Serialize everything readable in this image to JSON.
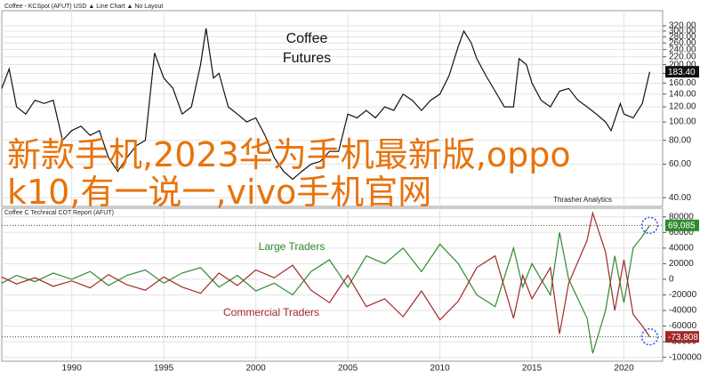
{
  "chart_data": [
    {
      "type": "line",
      "subtitle": "Coffee - KCSpot (AFUT) USD ▲ Line Chart ▲ No Layout",
      "title": "Coffee Futures",
      "log_scale": true,
      "grid": true,
      "xtick_labels": false,
      "xlim": [
        1986.2,
        2022.1
      ],
      "xticks": [
        1990,
        1995,
        2000,
        2005,
        2010,
        2015,
        2020
      ],
      "ylim": [
        36,
        360
      ],
      "yticks": [
        {
          "value": 320,
          "label": "320.00"
        },
        {
          "value": 300,
          "label": "300.00"
        },
        {
          "value": 280,
          "label": "280.00"
        },
        {
          "value": 260,
          "label": "260.00"
        },
        {
          "value": 240,
          "label": "240.00"
        },
        {
          "value": 220,
          "label": "220.00"
        },
        {
          "value": 200,
          "label": "200.00"
        },
        {
          "value": 180,
          "label": "180.00"
        },
        {
          "value": 160,
          "label": "160.00"
        },
        {
          "value": 140,
          "label": "140.00"
        },
        {
          "value": 120,
          "label": "120.00"
        },
        {
          "value": 100,
          "label": "100.00"
        },
        {
          "value": 80,
          "label": "80.00"
        },
        {
          "value": 60,
          "label": "60.00"
        },
        {
          "value": 40,
          "label": "40.00"
        }
      ],
      "x": [
        1986.2,
        1986.6,
        1987,
        1987.5,
        1988,
        1988.5,
        1989,
        1989.5,
        1990,
        1990.5,
        1991,
        1991.5,
        1992,
        1992.5,
        1993,
        1993.5,
        1994,
        1994.5,
        1995,
        1995.5,
        1996,
        1996.5,
        1997,
        1997.3,
        1997.7,
        1998,
        1998.5,
        1999,
        1999.5,
        2000,
        2000.5,
        2001,
        2001.5,
        2002,
        2002.5,
        2003,
        2003.5,
        2004,
        2004.5,
        2005,
        2005.5,
        2006,
        2006.5,
        2007,
        2007.5,
        2008,
        2008.5,
        2009,
        2009.5,
        2010,
        2010.5,
        2011,
        2011.3,
        2011.7,
        2012,
        2012.5,
        2013,
        2013.5,
        2014,
        2014.3,
        2014.7,
        2015,
        2015.5,
        2016,
        2016.5,
        2017,
        2017.5,
        2018,
        2018.5,
        2019,
        2019.3,
        2019.8,
        2020,
        2020.5,
        2021,
        2021.4
      ],
      "series": [
        {
          "name": "KCSpot",
          "color": "#111111",
          "values": [
            150,
            190,
            120,
            110,
            130,
            125,
            130,
            80,
            90,
            95,
            85,
            90,
            65,
            55,
            65,
            75,
            80,
            230,
            170,
            150,
            110,
            120,
            200,
            310,
            170,
            180,
            120,
            110,
            100,
            105,
            85,
            65,
            55,
            50,
            55,
            60,
            62,
            70,
            70,
            110,
            105,
            115,
            105,
            120,
            115,
            140,
            130,
            115,
            130,
            140,
            175,
            250,
            300,
            260,
            215,
            175,
            145,
            120,
            120,
            215,
            200,
            160,
            130,
            120,
            145,
            150,
            130,
            120,
            110,
            100,
            90,
            125,
            110,
            105,
            125,
            183.4
          ],
          "value_labels": [
            null,
            null,
            null,
            null,
            null,
            null,
            null,
            null,
            null,
            null,
            null,
            null,
            null,
            null,
            null,
            null,
            null,
            null,
            null,
            null,
            null,
            null,
            null,
            null,
            null,
            null,
            null,
            null,
            null,
            null,
            null,
            null,
            null,
            null,
            null,
            null,
            null,
            null,
            null,
            null,
            null,
            null,
            null,
            null,
            null,
            null,
            null,
            null,
            null,
            null,
            null,
            null,
            null,
            null,
            null,
            null,
            null,
            null,
            null,
            null,
            null,
            null,
            null,
            null,
            null,
            null,
            null,
            null,
            null,
            null,
            null,
            null,
            null,
            null,
            null,
            "183.40"
          ]
        }
      ]
    },
    {
      "type": "line",
      "subtitle": "Coffee C Technical COT Report (AFUT)",
      "annotations": [
        {
          "text": "Thrasher Analytics",
          "color": "#222222"
        }
      ],
      "grid": true,
      "xtick_labels": true,
      "last_value_lines": true,
      "xlim": [
        1986.2,
        2022.1
      ],
      "xticks": [
        1990,
        1995,
        2000,
        2005,
        2010,
        2015,
        2020
      ],
      "ylim": [
        -105000,
        90000
      ],
      "yticks": [
        80000,
        60000,
        40000,
        20000,
        0,
        -20000,
        -40000,
        -60000,
        -80000,
        -100000
      ],
      "x": [
        1986.2,
        1987,
        1988,
        1989,
        1990,
        1991,
        1992,
        1993,
        1994,
        1995,
        1996,
        1997,
        1998,
        1999,
        2000,
        2001,
        2002,
        2003,
        2004,
        2005,
        2006,
        2007,
        2008,
        2009,
        2010,
        2011,
        2012,
        2013,
        2014,
        2014.5,
        2015,
        2016,
        2016.5,
        2017,
        2018,
        2018.3,
        2019,
        2019.5,
        2020,
        2020.5,
        2021,
        2021.4
      ],
      "series": [
        {
          "name": "Large Traders",
          "color": "#2e8b2e",
          "values": [
            -5000,
            5000,
            -3000,
            8000,
            0,
            10000,
            -8000,
            5000,
            12000,
            -5000,
            8000,
            15000,
            -10000,
            5000,
            -15000,
            -5000,
            -20000,
            10000,
            25000,
            -10000,
            30000,
            20000,
            40000,
            10000,
            45000,
            20000,
            -20000,
            -35000,
            40000,
            -10000,
            20000,
            -20000,
            60000,
            0,
            -50000,
            -95000,
            -40000,
            30000,
            -30000,
            40000,
            55000,
            69085
          ],
          "value_labels": [
            null,
            null,
            null,
            null,
            null,
            null,
            null,
            null,
            null,
            null,
            null,
            null,
            null,
            null,
            null,
            null,
            null,
            null,
            null,
            null,
            null,
            null,
            null,
            null,
            null,
            null,
            null,
            null,
            null,
            null,
            null,
            null,
            null,
            null,
            null,
            null,
            null,
            null,
            null,
            null,
            null,
            "69,085"
          ]
        },
        {
          "name": "Commercial Traders",
          "color": "#a0282a",
          "values": [
            3000,
            -6000,
            2000,
            -9000,
            -2000,
            -11000,
            6000,
            -7000,
            -14000,
            3000,
            -10000,
            -18000,
            8000,
            -8000,
            12000,
            2000,
            18000,
            -14000,
            -30000,
            5000,
            -35000,
            -25000,
            -48000,
            -15000,
            -52000,
            -28000,
            15000,
            30000,
            -50000,
            5000,
            -25000,
            15000,
            -70000,
            -5000,
            50000,
            85000,
            35000,
            -40000,
            25000,
            -45000,
            -60000,
            -73808
          ],
          "value_labels": [
            null,
            null,
            null,
            null,
            null,
            null,
            null,
            null,
            null,
            null,
            null,
            null,
            null,
            null,
            null,
            null,
            null,
            null,
            null,
            null,
            null,
            null,
            null,
            null,
            null,
            null,
            null,
            null,
            null,
            null,
            null,
            null,
            null,
            null,
            null,
            null,
            null,
            null,
            null,
            null,
            null,
            "-73,808"
          ]
        }
      ]
    }
  ],
  "overlay": {
    "text": "新款手机,2023华为手机最新版,oppo k10,有一说一,vivo手机官网",
    "color": "#e8730c"
  }
}
